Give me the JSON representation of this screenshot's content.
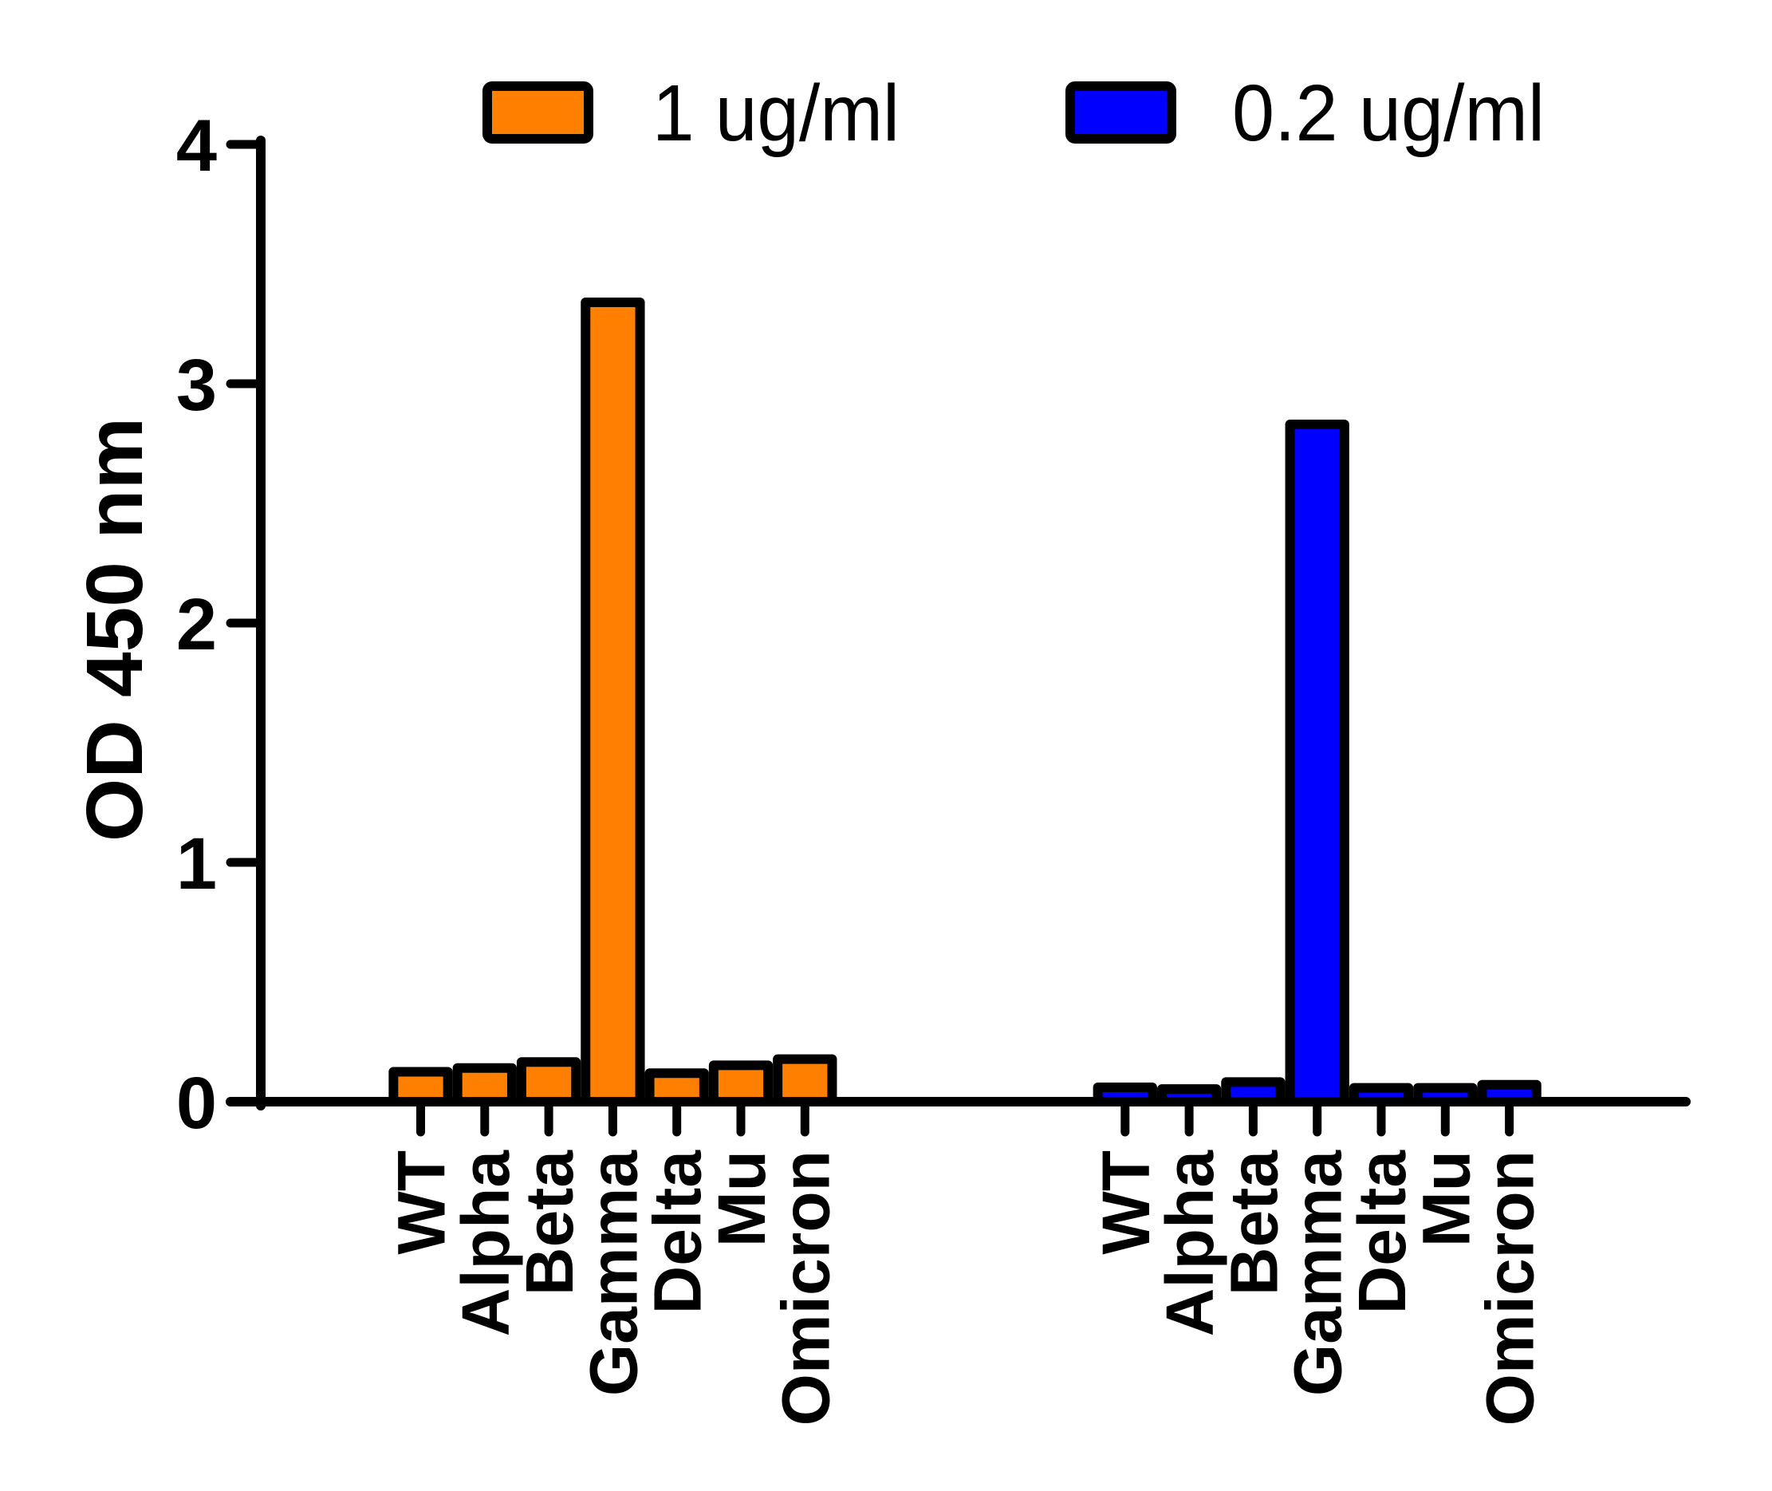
{
  "chart_data": {
    "type": "bar",
    "title": "",
    "xlabel": "",
    "ylabel": "OD 450 nm",
    "ylim": [
      0,
      4
    ],
    "yticks": [
      0,
      1,
      2,
      3,
      4
    ],
    "grid": false,
    "legend_position": "top",
    "categories": [
      "WT",
      "Alpha",
      "Beta",
      "Gamma",
      "Delta",
      "Mu",
      "Omicron"
    ],
    "series": [
      {
        "name": "1 ug/ml",
        "color": "#FF8000",
        "values": [
          0.125,
          0.141,
          0.166,
          3.34,
          0.119,
          0.152,
          0.178
        ]
      },
      {
        "name": "0.2 ug/ml",
        "color": "#0000FF",
        "values": [
          0.06,
          0.053,
          0.082,
          2.83,
          0.058,
          0.058,
          0.071
        ]
      }
    ],
    "layout_note": "grouped by concentration: 7 bars for 1 ug/ml, gap, 7 bars for 0.2 ug/ml; x labels rotated -90°"
  },
  "legend": {
    "items": [
      {
        "label": "1 ug/ml",
        "color": "#FF8000"
      },
      {
        "label": "0.2 ug/ml",
        "color": "#0000FF"
      }
    ]
  },
  "axes": {
    "y_title": "OD 450 nm",
    "y_tick_labels": [
      "0",
      "1",
      "2",
      "3",
      "4"
    ]
  }
}
